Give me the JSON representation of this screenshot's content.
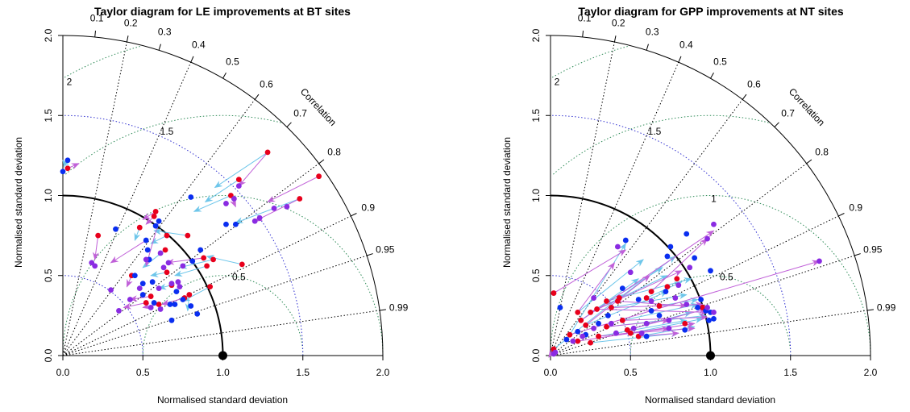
{
  "colors": {
    "model_a": "#e8001c",
    "model_b": "#0a2ef0",
    "model_c": "#8a2be2",
    "arrow_to_b": "#6ec6ea",
    "arrow_to_c": "#c060d8",
    "rms_contour": "#2e8b57",
    "sd_circle": "#3030d0",
    "correlation_ray": "#000000"
  },
  "chart_data": [
    {
      "type": "scatter",
      "subtype": "taylor-diagram",
      "title": "Taylor diagram for LE improvements at BT sites",
      "xlabel": "Normalised standard deviation",
      "ylabel": "Normalised standard deviation",
      "xlim": [
        0,
        2
      ],
      "ylim": [
        0,
        2
      ],
      "x_ticks": [
        "0.0",
        "0.5",
        "1.0",
        "1.5",
        "2.0"
      ],
      "y_ticks": [
        "0.0",
        "0.5",
        "1.0",
        "1.5",
        "2.0"
      ],
      "correlation_label": "Correlation",
      "correlation_ticks": [
        "0.1",
        "0.2",
        "0.3",
        "0.4",
        "0.5",
        "0.6",
        "0.7",
        "0.8",
        "0.9",
        "0.95",
        "0.99"
      ],
      "rms_labels": [
        "0.5",
        "1.5",
        "2"
      ],
      "reference_point": [
        1.0,
        0.0
      ],
      "points_a": [
        [
          1.28,
          1.27
        ],
        [
          1.6,
          1.12
        ],
        [
          1.48,
          0.98
        ],
        [
          1.1,
          1.1
        ],
        [
          1.05,
          1.0
        ],
        [
          0.22,
          0.75
        ],
        [
          0.58,
          0.9
        ],
        [
          0.57,
          0.87
        ],
        [
          0.65,
          0.75
        ],
        [
          0.78,
          0.75
        ],
        [
          0.64,
          0.66
        ],
        [
          0.88,
          0.61
        ],
        [
          0.94,
          0.6
        ],
        [
          0.9,
          0.56
        ],
        [
          1.12,
          0.57
        ],
        [
          0.92,
          0.43
        ],
        [
          0.52,
          0.33
        ],
        [
          0.79,
          0.38
        ],
        [
          0.03,
          1.17
        ],
        [
          0.48,
          0.8
        ],
        [
          0.65,
          0.52
        ],
        [
          0.68,
          0.44
        ],
        [
          0.43,
          0.5
        ],
        [
          0.55,
          0.37
        ],
        [
          0.6,
          0.32
        ],
        [
          0.76,
          0.36
        ]
      ],
      "points_b": [
        [
          0.0,
          1.15
        ],
        [
          0.03,
          1.22
        ],
        [
          0.8,
          0.99
        ],
        [
          0.33,
          0.79
        ],
        [
          0.52,
          0.72
        ],
        [
          0.58,
          0.81
        ],
        [
          0.6,
          0.84
        ],
        [
          0.86,
          0.66
        ],
        [
          0.81,
          0.59
        ],
        [
          1.02,
          0.82
        ],
        [
          1.08,
          0.82
        ],
        [
          0.56,
          0.46
        ],
        [
          0.5,
          0.45
        ],
        [
          0.45,
          0.5
        ],
        [
          0.5,
          0.38
        ],
        [
          0.57,
          0.33
        ],
        [
          0.54,
          0.6
        ],
        [
          0.67,
          0.32
        ],
        [
          0.71,
          0.4
        ],
        [
          0.7,
          0.32
        ],
        [
          0.75,
          0.35
        ],
        [
          0.8,
          0.31
        ],
        [
          0.84,
          0.26
        ],
        [
          0.68,
          0.22
        ],
        [
          0.53,
          0.66
        ]
      ],
      "points_c": [
        [
          0.2,
          0.56
        ],
        [
          0.18,
          0.58
        ],
        [
          0.3,
          0.41
        ],
        [
          0.35,
          0.28
        ],
        [
          0.42,
          0.35
        ],
        [
          0.48,
          0.42
        ],
        [
          1.1,
          1.06
        ],
        [
          1.4,
          0.93
        ],
        [
          1.32,
          0.92
        ],
        [
          1.2,
          0.84
        ],
        [
          1.23,
          0.86
        ],
        [
          0.68,
          0.45
        ],
        [
          0.6,
          0.42
        ],
        [
          0.52,
          0.6
        ],
        [
          0.75,
          0.56
        ],
        [
          0.73,
          0.43
        ],
        [
          0.55,
          0.3
        ],
        [
          0.61,
          0.29
        ],
        [
          0.61,
          0.64
        ],
        [
          0.66,
          0.58
        ],
        [
          0.63,
          0.55
        ],
        [
          1.07,
          0.98
        ],
        [
          1.02,
          0.95
        ],
        [
          0.72,
          0.46
        ]
      ],
      "arrows_to_b": [
        [
          1.28,
          1.27,
          0.95,
          1.05
        ],
        [
          1.1,
          1.1,
          0.89,
          0.96
        ],
        [
          0.78,
          0.75,
          0.57,
          0.78
        ],
        [
          0.65,
          0.75,
          0.55,
          0.7
        ],
        [
          1.12,
          0.57,
          0.9,
          0.62
        ],
        [
          0.94,
          0.6,
          0.73,
          0.55
        ],
        [
          0.92,
          0.43,
          0.75,
          0.34
        ],
        [
          0.9,
          0.56,
          0.7,
          0.5
        ],
        [
          0.64,
          0.66,
          0.5,
          0.55
        ],
        [
          0.79,
          0.38,
          0.78,
          0.28
        ],
        [
          1.05,
          1.0,
          0.82,
          0.9
        ],
        [
          0.03,
          1.17,
          0.0,
          1.22
        ],
        [
          0.48,
          0.8,
          0.45,
          0.72
        ],
        [
          0.65,
          0.52,
          0.55,
          0.5
        ],
        [
          0.68,
          0.44,
          0.6,
          0.42
        ],
        [
          1.48,
          0.98,
          1.08,
          0.83
        ]
      ],
      "arrows_to_c": [
        [
          1.6,
          1.12,
          1.28,
          0.96
        ],
        [
          1.48,
          0.98,
          1.2,
          0.84
        ],
        [
          1.05,
          1.0,
          1.08,
          0.93
        ],
        [
          0.22,
          0.75,
          0.2,
          0.6
        ],
        [
          0.57,
          0.87,
          0.52,
          0.82
        ],
        [
          0.6,
          0.84,
          0.52,
          0.56
        ],
        [
          0.58,
          0.9,
          0.5,
          0.85
        ],
        [
          0.52,
          0.72,
          0.3,
          0.58
        ],
        [
          0.88,
          0.61,
          0.65,
          0.58
        ],
        [
          0.52,
          0.33,
          0.38,
          0.3
        ],
        [
          0.55,
          0.37,
          0.42,
          0.35
        ],
        [
          0.6,
          0.32,
          0.5,
          0.3
        ],
        [
          0.76,
          0.36,
          0.62,
          0.32
        ],
        [
          0.03,
          1.17,
          0.1,
          1.2
        ],
        [
          1.28,
          1.27,
          1.1,
          1.06
        ],
        [
          0.43,
          0.5,
          0.4,
          0.43
        ]
      ]
    },
    {
      "type": "scatter",
      "subtype": "taylor-diagram",
      "title": "Taylor diagram for GPP improvements at NT sites",
      "xlabel": "Normalised standard deviation",
      "ylabel": "Normalised standard deviation",
      "xlim": [
        0,
        2
      ],
      "ylim": [
        0,
        2
      ],
      "x_ticks": [
        "0.0",
        "0.5",
        "1.0",
        "1.5",
        "2.0"
      ],
      "y_ticks": [
        "0.0",
        "0.5",
        "1.0",
        "1.5",
        "2.0"
      ],
      "correlation_label": "Correlation",
      "correlation_ticks": [
        "0.1",
        "0.2",
        "0.3",
        "0.4",
        "0.5",
        "0.6",
        "0.7",
        "0.8",
        "0.9",
        "0.95",
        "0.99"
      ],
      "rms_labels": [
        "0.5",
        "1",
        "1.5",
        "2"
      ],
      "reference_point": [
        1.0,
        0.0
      ],
      "points_a": [
        [
          0.02,
          0.39
        ],
        [
          0.02,
          0.04
        ],
        [
          0.12,
          0.13
        ],
        [
          0.17,
          0.27
        ],
        [
          0.19,
          0.22
        ],
        [
          0.22,
          0.19
        ],
        [
          0.25,
          0.27
        ],
        [
          0.29,
          0.29
        ],
        [
          0.35,
          0.34
        ],
        [
          0.38,
          0.3
        ],
        [
          0.42,
          0.34
        ],
        [
          0.45,
          0.22
        ],
        [
          0.48,
          0.16
        ],
        [
          0.5,
          0.14
        ],
        [
          0.55,
          0.12
        ],
        [
          0.6,
          0.36
        ],
        [
          0.63,
          0.4
        ],
        [
          0.68,
          0.31
        ],
        [
          0.73,
          0.43
        ],
        [
          0.79,
          0.48
        ],
        [
          0.84,
          0.2
        ],
        [
          0.95,
          0.3
        ],
        [
          0.17,
          0.09
        ],
        [
          0.3,
          0.12
        ],
        [
          0.25,
          0.08
        ],
        [
          0.43,
          0.36
        ],
        [
          0.35,
          0.18
        ]
      ],
      "points_b": [
        [
          0.47,
          0.72
        ],
        [
          0.73,
          0.62
        ],
        [
          0.75,
          0.68
        ],
        [
          0.85,
          0.76
        ],
        [
          0.9,
          0.61
        ],
        [
          1.0,
          0.53
        ],
        [
          0.92,
          0.3
        ],
        [
          1.0,
          0.27
        ],
        [
          1.02,
          0.23
        ],
        [
          0.94,
          0.35
        ],
        [
          0.97,
          0.28
        ],
        [
          0.99,
          0.22
        ],
        [
          0.68,
          0.25
        ],
        [
          0.72,
          0.4
        ],
        [
          0.55,
          0.35
        ],
        [
          0.63,
          0.28
        ],
        [
          0.84,
          0.16
        ],
        [
          0.36,
          0.25
        ],
        [
          0.06,
          0.3
        ],
        [
          0.17,
          0.15
        ],
        [
          0.22,
          0.13
        ],
        [
          0.1,
          0.1
        ],
        [
          0.3,
          0.2
        ],
        [
          0.6,
          0.12
        ],
        [
          0.45,
          0.42
        ]
      ],
      "points_c": [
        [
          1.68,
          0.59
        ],
        [
          1.02,
          0.82
        ],
        [
          0.98,
          0.73
        ],
        [
          0.87,
          0.55
        ],
        [
          0.8,
          0.44
        ],
        [
          0.5,
          0.52
        ],
        [
          0.42,
          0.68
        ],
        [
          0.27,
          0.36
        ],
        [
          0.14,
          0.09
        ],
        [
          0.2,
          0.12
        ],
        [
          0.27,
          0.17
        ],
        [
          0.38,
          0.2
        ],
        [
          0.41,
          0.14
        ],
        [
          0.52,
          0.17
        ],
        [
          0.57,
          0.14
        ],
        [
          0.6,
          0.2
        ],
        [
          0.63,
          0.34
        ],
        [
          0.74,
          0.22
        ],
        [
          0.74,
          0.17
        ],
        [
          1.02,
          0.27
        ],
        [
          0.98,
          0.3
        ],
        [
          0.85,
          0.32
        ],
        [
          0.02,
          0.01
        ],
        [
          0.03,
          0.02
        ],
        [
          0.78,
          0.36
        ]
      ],
      "arrows_to_b": [
        [
          0.12,
          0.13,
          0.47,
          0.7
        ],
        [
          0.17,
          0.27,
          0.58,
          0.6
        ],
        [
          0.25,
          0.27,
          0.7,
          0.55
        ],
        [
          0.29,
          0.29,
          0.73,
          0.5
        ],
        [
          0.35,
          0.34,
          0.88,
          0.48
        ],
        [
          0.38,
          0.3,
          0.85,
          0.38
        ],
        [
          0.45,
          0.22,
          0.92,
          0.32
        ],
        [
          0.48,
          0.16,
          0.88,
          0.27
        ],
        [
          0.5,
          0.14,
          0.95,
          0.23
        ],
        [
          0.55,
          0.12,
          0.9,
          0.18
        ],
        [
          0.6,
          0.36,
          0.82,
          0.46
        ],
        [
          0.68,
          0.31,
          0.92,
          0.35
        ],
        [
          0.19,
          0.22,
          0.55,
          0.48
        ],
        [
          0.22,
          0.19,
          0.73,
          0.4
        ],
        [
          0.3,
          0.12,
          0.85,
          0.22
        ],
        [
          0.25,
          0.08,
          0.8,
          0.14
        ],
        [
          0.43,
          0.36,
          0.78,
          0.62
        ],
        [
          0.35,
          0.18,
          0.97,
          0.25
        ],
        [
          0.02,
          0.04,
          0.45,
          0.38
        ]
      ],
      "arrows_to_c": [
        [
          0.12,
          0.13,
          1.68,
          0.59
        ],
        [
          0.02,
          0.39,
          0.47,
          0.66
        ],
        [
          0.17,
          0.27,
          0.4,
          0.58
        ],
        [
          0.19,
          0.22,
          1.02,
          0.78
        ],
        [
          0.22,
          0.19,
          0.62,
          0.5
        ],
        [
          0.25,
          0.27,
          0.82,
          0.53
        ],
        [
          0.29,
          0.29,
          0.98,
          0.27
        ],
        [
          0.38,
          0.3,
          0.95,
          0.32
        ],
        [
          0.42,
          0.34,
          0.85,
          0.31
        ],
        [
          0.45,
          0.22,
          0.98,
          0.24
        ],
        [
          0.5,
          0.14,
          0.9,
          0.17
        ],
        [
          0.55,
          0.12,
          0.8,
          0.14
        ],
        [
          0.02,
          0.04,
          -0.01,
          -0.01
        ],
        [
          0.17,
          0.09,
          0.9,
          0.2
        ],
        [
          0.3,
          0.12,
          0.74,
          0.17
        ],
        [
          0.35,
          0.18,
          0.74,
          0.22
        ],
        [
          0.48,
          0.16,
          0.97,
          0.29
        ],
        [
          0.63,
          0.4,
          0.98,
          0.73
        ]
      ]
    }
  ]
}
